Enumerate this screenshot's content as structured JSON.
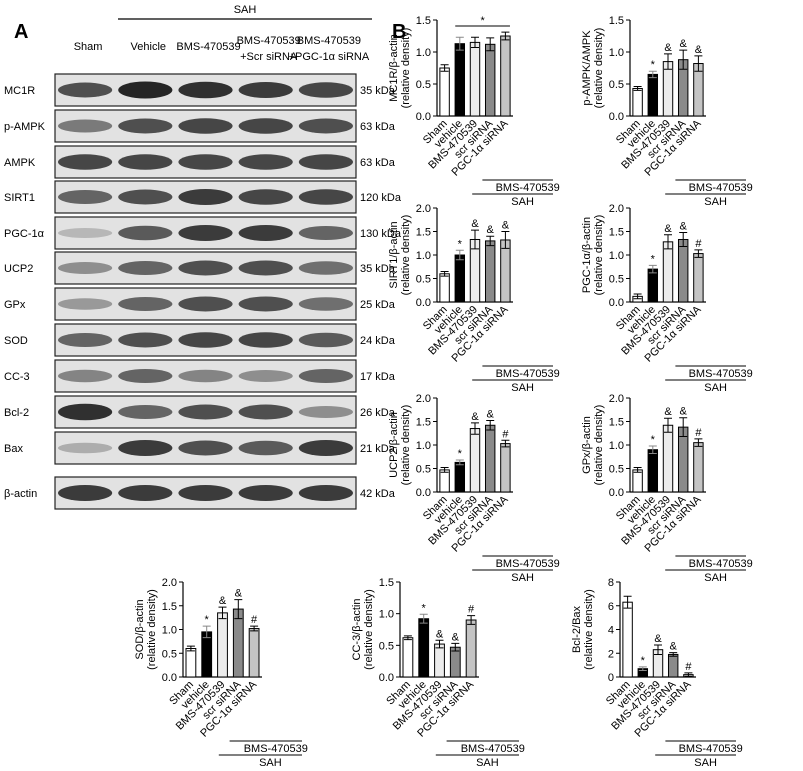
{
  "panel_labels": [
    "A",
    "B"
  ],
  "blot": {
    "group_label": "SAH",
    "lanes": [
      [
        "Sham"
      ],
      [
        "Vehicle"
      ],
      [
        "BMS-470539"
      ],
      [
        "BMS-470539",
        "+Scr siRNA"
      ],
      [
        "BMS-470539",
        "+PGC-1α siRNA"
      ]
    ],
    "rows": [
      {
        "name": "MC1R",
        "size": "35 kDa"
      },
      {
        "name": "p-AMPK",
        "size": "63 kDa"
      },
      {
        "name": "AMPK",
        "size": "63 kDa"
      },
      {
        "name": "SIRT1",
        "size": "120 kDa"
      },
      {
        "name": "PGC-1α",
        "size": "130 kDa"
      },
      {
        "name": "UCP2",
        "size": "35 kDa"
      },
      {
        "name": "GPx",
        "size": "25 kDa"
      },
      {
        "name": "SOD",
        "size": "24 kDa"
      },
      {
        "name": "CC-3",
        "size": "17 kDa"
      },
      {
        "name": "Bcl-2",
        "size": "26 kDa"
      },
      {
        "name": "Bax",
        "size": "21 kDa"
      },
      {
        "name": "β-actin",
        "size": "42 kDa"
      }
    ]
  },
  "chart_data": [
    {
      "type": "bar",
      "ylabel": [
        "MC1R/β-actin",
        "(relative density)"
      ],
      "categories": [
        "Sham",
        "vehicle",
        "BMS-470539",
        "scr siRNA",
        "PGC-1α siRNA"
      ],
      "values": [
        0.75,
        1.13,
        1.15,
        1.12,
        1.25
      ],
      "errors": [
        0.05,
        0.1,
        0.08,
        0.1,
        0.06
      ],
      "markers": [
        null,
        null,
        null,
        null,
        null
      ],
      "bracket": "*",
      "colors": [
        "#ffffff",
        "#000000",
        "#ececec",
        "#8a8a8a",
        "#c4c4c4"
      ],
      "ylim": [
        0,
        1.5
      ],
      "yticks": [
        {
          "value": 0,
          "label": "0.0"
        },
        {
          "value": 0.5,
          "label": "0.5"
        },
        {
          "value": 1,
          "label": "1.0"
        },
        {
          "value": 1.5,
          "label": "1.5"
        }
      ],
      "group_labels": [
        "BMS-470539",
        "SAH"
      ]
    },
    {
      "type": "bar",
      "ylabel": [
        "p-AMPK/AMPK",
        "(relative density)"
      ],
      "categories": [
        "Sham",
        "vehicle",
        "BMS-470539",
        "scr siRNA",
        "PGC-1α siRNA"
      ],
      "values": [
        0.43,
        0.65,
        0.85,
        0.88,
        0.82
      ],
      "errors": [
        0.03,
        0.05,
        0.12,
        0.15,
        0.12
      ],
      "markers": [
        null,
        "*",
        "&",
        "&",
        "&"
      ],
      "colors": [
        "#ffffff",
        "#000000",
        "#ececec",
        "#8a8a8a",
        "#c4c4c4"
      ],
      "ylim": [
        0,
        1.5
      ],
      "yticks": [
        {
          "value": 0,
          "label": "0.0"
        },
        {
          "value": 0.5,
          "label": "0.5"
        },
        {
          "value": 1,
          "label": "1.0"
        },
        {
          "value": 1.5,
          "label": "1.5"
        }
      ],
      "group_labels": [
        "BMS-470539",
        "SAH"
      ]
    },
    {
      "type": "bar",
      "ylabel": [
        "SIRT1/β-actin",
        "(relative density)"
      ],
      "categories": [
        "Sham",
        "vehicle",
        "BMS-470539",
        "scr siRNA",
        "PGC-1α siRNA"
      ],
      "values": [
        0.6,
        1.0,
        1.33,
        1.3,
        1.32
      ],
      "errors": [
        0.05,
        0.1,
        0.2,
        0.1,
        0.18
      ],
      "markers": [
        null,
        "*",
        "&",
        "&",
        "&"
      ],
      "colors": [
        "#ffffff",
        "#000000",
        "#ececec",
        "#8a8a8a",
        "#c4c4c4"
      ],
      "ylim": [
        0,
        2
      ],
      "yticks": [
        {
          "value": 0,
          "label": "0.0"
        },
        {
          "value": 0.5,
          "label": "0.5"
        },
        {
          "value": 1,
          "label": "1.0"
        },
        {
          "value": 1.5,
          "label": "1.5"
        },
        {
          "value": 2,
          "label": "2.0"
        }
      ],
      "group_labels": [
        "BMS-470539",
        "SAH"
      ]
    },
    {
      "type": "bar",
      "ylabel": [
        "PGC-1α/β-actin",
        "(relative density)"
      ],
      "categories": [
        "Sham",
        "vehicle",
        "BMS-470539",
        "scr siRNA",
        "PGC-1α siRNA"
      ],
      "values": [
        0.12,
        0.7,
        1.28,
        1.33,
        1.03
      ],
      "errors": [
        0.05,
        0.08,
        0.15,
        0.15,
        0.08
      ],
      "markers": [
        null,
        "*",
        "&",
        "&",
        "#"
      ],
      "colors": [
        "#ffffff",
        "#000000",
        "#ececec",
        "#8a8a8a",
        "#c4c4c4"
      ],
      "ylim": [
        0,
        2
      ],
      "yticks": [
        {
          "value": 0,
          "label": "0.0"
        },
        {
          "value": 0.5,
          "label": "0.5"
        },
        {
          "value": 1,
          "label": "1.0"
        },
        {
          "value": 1.5,
          "label": "1.5"
        },
        {
          "value": 2,
          "label": "2.0"
        }
      ],
      "group_labels": [
        "BMS-470539",
        "SAH"
      ]
    },
    {
      "type": "bar",
      "ylabel": [
        "UCP2/β-actin",
        "(relative density)"
      ],
      "categories": [
        "Sham",
        "vehicle",
        "BMS-470539",
        "scr siRNA",
        "PGC-1α siRNA"
      ],
      "values": [
        0.47,
        0.63,
        1.35,
        1.42,
        1.03
      ],
      "errors": [
        0.05,
        0.05,
        0.12,
        0.1,
        0.07
      ],
      "markers": [
        null,
        "*",
        "&",
        "&",
        "#"
      ],
      "colors": [
        "#ffffff",
        "#000000",
        "#ececec",
        "#8a8a8a",
        "#c4c4c4"
      ],
      "ylim": [
        0,
        2
      ],
      "yticks": [
        {
          "value": 0,
          "label": "0.0"
        },
        {
          "value": 0.5,
          "label": "0.5"
        },
        {
          "value": 1,
          "label": "1.0"
        },
        {
          "value": 1.5,
          "label": "1.5"
        },
        {
          "value": 2,
          "label": "2.0"
        }
      ],
      "group_labels": [
        "BMS-470539",
        "SAH"
      ]
    },
    {
      "type": "bar",
      "ylabel": [
        "GPx/β-actin",
        "(relative density)"
      ],
      "categories": [
        "Sham",
        "vehicle",
        "BMS-470539",
        "scr siRNA",
        "PGC-1α siRNA"
      ],
      "values": [
        0.47,
        0.9,
        1.42,
        1.38,
        1.05
      ],
      "errors": [
        0.05,
        0.08,
        0.15,
        0.2,
        0.08
      ],
      "markers": [
        null,
        "*",
        "&",
        "&",
        "#"
      ],
      "colors": [
        "#ffffff",
        "#000000",
        "#ececec",
        "#8a8a8a",
        "#c4c4c4"
      ],
      "ylim": [
        0,
        2
      ],
      "yticks": [
        {
          "value": 0,
          "label": "0.0"
        },
        {
          "value": 0.5,
          "label": "0.5"
        },
        {
          "value": 1,
          "label": "1.0"
        },
        {
          "value": 1.5,
          "label": "1.5"
        },
        {
          "value": 2,
          "label": "2.0"
        }
      ],
      "group_labels": [
        "BMS-470539",
        "SAH"
      ]
    },
    {
      "type": "bar",
      "ylabel": [
        "SOD/β-actin",
        "(relative density)"
      ],
      "categories": [
        "Sham",
        "vehicle",
        "BMS-470539",
        "scr siRNA",
        "PGC-1α siRNA"
      ],
      "values": [
        0.6,
        0.95,
        1.35,
        1.43,
        1.02
      ],
      "errors": [
        0.05,
        0.12,
        0.12,
        0.2,
        0.05
      ],
      "markers": [
        null,
        "*",
        "&",
        "&",
        "#"
      ],
      "colors": [
        "#ffffff",
        "#000000",
        "#ececec",
        "#8a8a8a",
        "#c4c4c4"
      ],
      "ylim": [
        0,
        2
      ],
      "yticks": [
        {
          "value": 0,
          "label": "0.0"
        },
        {
          "value": 0.5,
          "label": "0.5"
        },
        {
          "value": 1,
          "label": "1.0"
        },
        {
          "value": 1.5,
          "label": "1.5"
        },
        {
          "value": 2,
          "label": "2.0"
        }
      ],
      "group_labels": [
        "BMS-470539",
        "SAH"
      ]
    },
    {
      "type": "bar",
      "ylabel": [
        "CC-3/β-actin",
        "(relative density)"
      ],
      "categories": [
        "Sham",
        "vehicle",
        "BMS-470539",
        "scr siRNA",
        "PGC-1α siRNA"
      ],
      "values": [
        0.62,
        0.92,
        0.52,
        0.47,
        0.9
      ],
      "errors": [
        0.03,
        0.07,
        0.06,
        0.06,
        0.07
      ],
      "markers": [
        null,
        "*",
        "&",
        "&",
        "#"
      ],
      "colors": [
        "#ffffff",
        "#000000",
        "#ececec",
        "#8a8a8a",
        "#c4c4c4"
      ],
      "ylim": [
        0,
        1.5
      ],
      "yticks": [
        {
          "value": 0,
          "label": "0.0"
        },
        {
          "value": 0.5,
          "label": "0.5"
        },
        {
          "value": 1,
          "label": "1.0"
        },
        {
          "value": 1.5,
          "label": "1.5"
        }
      ],
      "group_labels": [
        "BMS-470539",
        "SAH"
      ]
    },
    {
      "type": "bar",
      "ylabel": [
        "Bcl-2/Bax",
        "(relative density)"
      ],
      "categories": [
        "Sham",
        "vehicle",
        "BMS-470539",
        "scr siRNA",
        "PGC-1α siRNA"
      ],
      "values": [
        6.3,
        0.7,
        2.3,
        1.9,
        0.2
      ],
      "errors": [
        0.5,
        0.15,
        0.4,
        0.15,
        0.15
      ],
      "markers": [
        null,
        "*",
        "&",
        "&",
        "#"
      ],
      "colors": [
        "#ffffff",
        "#000000",
        "#ececec",
        "#8a8a8a",
        "#c4c4c4"
      ],
      "ylim": [
        0,
        8
      ],
      "yticks": [
        0,
        2,
        4,
        6,
        8
      ],
      "group_labels": [
        "BMS-470539",
        "SAH"
      ]
    }
  ]
}
